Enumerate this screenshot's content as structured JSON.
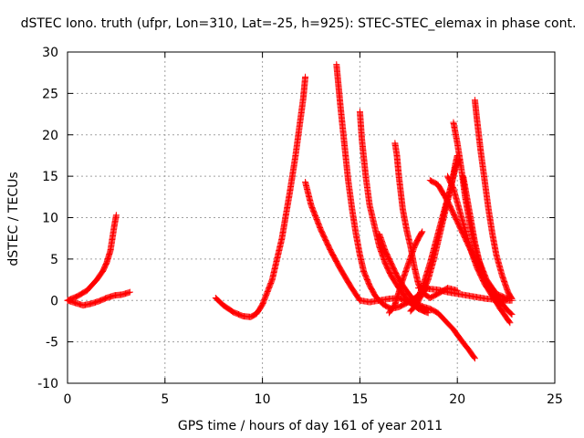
{
  "chart_data": {
    "type": "scatter",
    "title": "dSTEC Iono. truth (ufpr, Lon=310, Lat=-25, h=925): STEC-STEC_elemax in phase cont.",
    "xlabel": "GPS time / hours of day 161 of year 2011",
    "ylabel": "dSTEC  / TECUs",
    "xlim": [
      0,
      25
    ],
    "ylim": [
      -10,
      30
    ],
    "xticks": [
      0,
      5,
      10,
      15,
      20,
      25
    ],
    "yticks": [
      -10,
      -5,
      0,
      5,
      10,
      15,
      20,
      25,
      30
    ],
    "grid": true,
    "legend": "none",
    "marker": "+",
    "color": "#ff0000",
    "series": [
      {
        "x": [
          0.0,
          0.5,
          1.0,
          1.5,
          1.8,
          2.0,
          2.2,
          2.3,
          2.4,
          2.5
        ],
        "y": [
          0.0,
          0.5,
          1.2,
          2.5,
          3.5,
          4.5,
          6.0,
          7.5,
          9.0,
          10.3
        ]
      },
      {
        "x": [
          0.0,
          0.4,
          0.8,
          1.2,
          1.6,
          2.0,
          2.4,
          2.8,
          3.2
        ],
        "y": [
          0.0,
          -0.3,
          -0.6,
          -0.4,
          -0.1,
          0.3,
          0.6,
          0.7,
          1.0
        ]
      },
      {
        "x": [
          7.6,
          8.0,
          8.5,
          9.0,
          9.4,
          9.7,
          10.0,
          10.5,
          11.0,
          11.4,
          11.7,
          11.9,
          12.1,
          12.2
        ],
        "y": [
          0.3,
          -0.6,
          -1.4,
          -1.9,
          -2.0,
          -1.6,
          -0.5,
          2.5,
          7.5,
          13.0,
          17.5,
          21.0,
          24.5,
          27.0
        ]
      },
      {
        "x": [
          12.2,
          12.5,
          13.0,
          13.5,
          14.0,
          14.5,
          15.0,
          15.5,
          16.0,
          16.5,
          17.0,
          17.5,
          18.0,
          18.3
        ],
        "y": [
          14.3,
          11.5,
          8.5,
          6.0,
          3.8,
          1.8,
          0.0,
          -0.2,
          0.0,
          0.2,
          0.3,
          -0.2,
          -0.8,
          -1.3
        ]
      },
      {
        "x": [
          13.8,
          13.9,
          14.0,
          14.2,
          14.4,
          14.6,
          14.8,
          15.0,
          15.2,
          15.5,
          15.8,
          16.2,
          16.6,
          17.0,
          17.5,
          18.0,
          18.5
        ],
        "y": [
          28.5,
          26.0,
          23.5,
          19.0,
          14.5,
          11.0,
          8.0,
          5.5,
          3.5,
          1.8,
          0.5,
          -0.5,
          -1.0,
          -0.8,
          -0.2,
          0.6,
          1.6
        ]
      },
      {
        "x": [
          15.0,
          15.1,
          15.3,
          15.5,
          15.8,
          16.0,
          16.3,
          16.6,
          17.0,
          17.3,
          17.6,
          18.0,
          18.5
        ],
        "y": [
          22.8,
          19.5,
          15.0,
          11.5,
          8.5,
          6.5,
          4.5,
          3.0,
          1.5,
          0.5,
          -0.3,
          -1.0,
          -1.5
        ]
      },
      {
        "x": [
          16.0,
          16.3,
          16.6,
          16.9,
          17.2,
          17.6,
          18.0,
          18.3,
          18.6,
          19.0,
          19.4,
          19.8,
          20.2,
          20.6,
          20.9
        ],
        "y": [
          8.0,
          6.0,
          4.5,
          3.0,
          1.8,
          0.5,
          -0.5,
          -0.8,
          -1.0,
          -1.5,
          -2.5,
          -3.5,
          -4.8,
          -6.0,
          -7.0
        ]
      },
      {
        "x": [
          16.8,
          16.9,
          17.0,
          17.2,
          17.4,
          17.6,
          17.8,
          18.0,
          18.3,
          18.6,
          19.0,
          19.5,
          20.0
        ],
        "y": [
          19.0,
          17.5,
          15.0,
          11.0,
          8.5,
          6.5,
          4.0,
          2.0,
          0.8,
          0.3,
          0.8,
          1.5,
          1.2
        ]
      },
      {
        "x": [
          16.5,
          16.8,
          17.0,
          17.2,
          17.5,
          17.8,
          18.0,
          18.2
        ],
        "y": [
          -1.5,
          -0.5,
          1.0,
          2.5,
          4.5,
          6.5,
          7.5,
          8.3
        ]
      },
      {
        "x": [
          17.6,
          17.9,
          18.2,
          18.5,
          18.8,
          19.1,
          19.4,
          19.7,
          19.9,
          20.0
        ],
        "y": [
          -1.3,
          -0.5,
          0.8,
          2.5,
          5.0,
          8.0,
          11.0,
          14.0,
          16.5,
          17.5
        ]
      },
      {
        "x": [
          17.8,
          18.2,
          18.6,
          19.0,
          19.4,
          19.7,
          19.9,
          20.1
        ],
        "y": [
          -0.5,
          1.5,
          4.5,
          8.0,
          11.5,
          14.0,
          16.0,
          17.0
        ]
      },
      {
        "x": [
          19.8,
          20.0,
          20.2,
          20.4,
          20.7,
          21.0,
          21.5,
          22.0,
          22.6
        ],
        "y": [
          21.5,
          19.0,
          16.0,
          12.5,
          8.5,
          5.5,
          2.5,
          0.8,
          0.2
        ]
      },
      {
        "x": [
          20.9,
          21.0,
          21.2,
          21.4,
          21.6,
          21.8,
          22.0,
          22.3,
          22.6,
          22.8
        ],
        "y": [
          24.2,
          22.0,
          18.0,
          14.5,
          11.0,
          8.0,
          5.5,
          3.0,
          1.0,
          0.2
        ]
      },
      {
        "x": [
          18.6,
          19.0,
          19.5,
          20.0,
          20.5,
          21.0,
          21.5,
          22.0,
          22.5,
          22.8
        ],
        "y": [
          14.5,
          14.0,
          12.0,
          9.5,
          7.0,
          4.5,
          2.2,
          0.5,
          -1.0,
          -1.7
        ]
      },
      {
        "x": [
          19.5,
          19.8,
          20.1,
          20.4,
          20.7,
          21.0,
          21.4,
          21.8,
          22.2,
          22.7
        ],
        "y": [
          15.0,
          13.5,
          11.0,
          8.5,
          6.0,
          4.0,
          2.0,
          0.5,
          -1.0,
          -2.7
        ]
      },
      {
        "x": [
          20.3,
          20.6,
          20.9,
          21.2,
          21.5,
          21.8,
          22.0,
          22.3,
          22.6
        ],
        "y": [
          15.0,
          11.0,
          7.0,
          4.0,
          2.0,
          0.8,
          0.3,
          0.0,
          0.2
        ]
      },
      {
        "x": [
          18.0,
          18.5,
          19.0,
          19.5,
          20.0,
          20.5,
          21.0,
          21.5,
          22.0,
          22.5,
          22.8
        ],
        "y": [
          1.5,
          1.4,
          1.3,
          1.0,
          0.8,
          0.6,
          0.4,
          0.2,
          0.1,
          0.0,
          0.0
        ]
      }
    ]
  }
}
